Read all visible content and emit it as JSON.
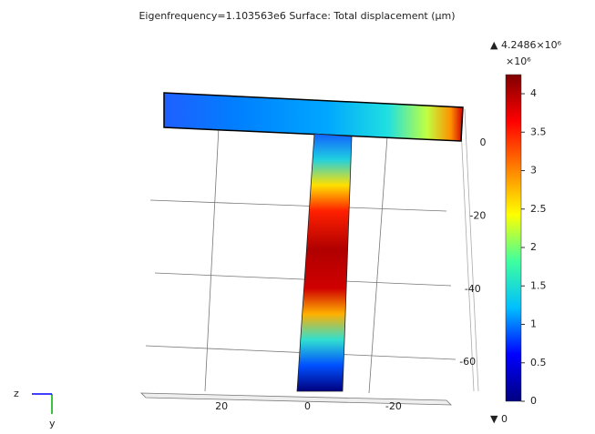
{
  "chart_data": {
    "type": "surface",
    "title": "Eigenfrequency=1.103563e6   Surface: Total displacement (µm)",
    "xticks": [
      20,
      0,
      -20
    ],
    "yticks": [
      0,
      -20,
      -40,
      -60
    ],
    "colorbar": {
      "lim": [
        0,
        4.2486
      ],
      "ticks": [
        0,
        0.5,
        1,
        1.5,
        2,
        2.5,
        3,
        3.5,
        4
      ],
      "max": 4.2486,
      "max_label": "▲ 4.2486×10⁶",
      "scale_label": "×10⁶",
      "min": 0,
      "min_label": "▼ 0",
      "colors": [
        "#00007f",
        "#0000ff",
        "#00bfff",
        "#3fff9f",
        "#ffff00",
        "#ff7f00",
        "#ff0000",
        "#7f0000"
      ]
    },
    "triad": [
      "z",
      "y"
    ]
  }
}
